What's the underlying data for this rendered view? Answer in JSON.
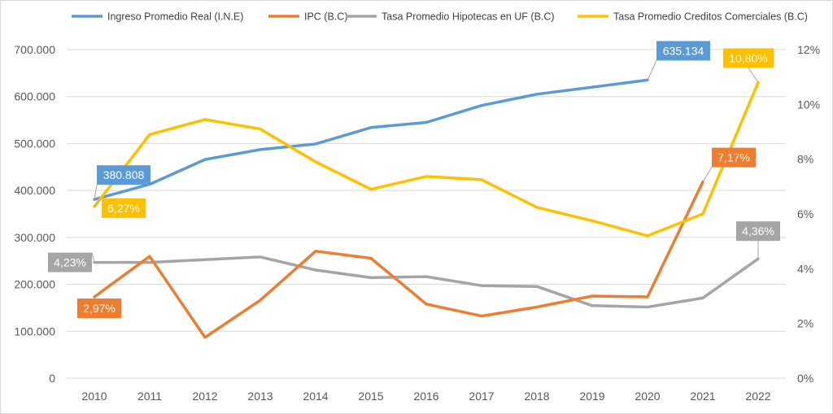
{
  "chart_data": {
    "type": "line",
    "categories": [
      "2010",
      "2011",
      "2012",
      "2013",
      "2014",
      "2015",
      "2016",
      "2017",
      "2018",
      "2019",
      "2020",
      "2021",
      "2022"
    ],
    "y_left": {
      "ticks": [
        "0",
        "100.000",
        "200.000",
        "300.000",
        "400.000",
        "500.000",
        "600.000",
        "700.000"
      ],
      "range": [
        0,
        700000
      ]
    },
    "y_right": {
      "ticks": [
        "0%",
        "2%",
        "4%",
        "6%",
        "8%",
        "10%",
        "12%"
      ],
      "range": [
        0,
        12
      ]
    },
    "grid": true,
    "legend_position": "top",
    "series": [
      {
        "name": "Ingreso Promedio Real (I.N.E)",
        "axis": "left",
        "color": "#5b9bd5",
        "values": [
          380808,
          413000,
          466000,
          487000,
          499000,
          534000,
          545000,
          581000,
          605000,
          620000,
          635134,
          null,
          null
        ]
      },
      {
        "name": "IPC (B.C)",
        "axis": "right",
        "color": "#ed7d31",
        "values": [
          2.97,
          4.45,
          1.49,
          2.85,
          4.64,
          4.38,
          2.71,
          2.27,
          2.6,
          3.0,
          2.97,
          7.17,
          null
        ]
      },
      {
        "name": "Tasa Promedio Hipotecas en UF (B.C)",
        "axis": "right",
        "color": "#a5a5a5",
        "values": [
          4.23,
          4.23,
          4.33,
          4.43,
          3.95,
          3.67,
          3.71,
          3.38,
          3.35,
          2.65,
          2.6,
          2.93,
          4.36
        ]
      },
      {
        "name": "Tasa Promedio Creditos Comerciales (B.C)",
        "axis": "right",
        "color": "#ffc000",
        "values": [
          6.27,
          8.9,
          9.45,
          9.1,
          7.9,
          6.9,
          7.37,
          7.25,
          6.24,
          5.75,
          5.2,
          6.0,
          10.8
        ]
      }
    ],
    "data_labels": [
      {
        "series": 0,
        "index": 0,
        "text": "380.808",
        "bg": "#5b9bd5"
      },
      {
        "series": 0,
        "index": 10,
        "text": "635.134",
        "bg": "#5b9bd5"
      },
      {
        "series": 1,
        "index": 0,
        "text": "2,97%",
        "bg": "#ed7d31"
      },
      {
        "series": 1,
        "index": 11,
        "text": "7,17%",
        "bg": "#ed7d31"
      },
      {
        "series": 2,
        "index": 0,
        "text": "4,23%",
        "bg": "#a5a5a5"
      },
      {
        "series": 2,
        "index": 12,
        "text": "4,36%",
        "bg": "#a5a5a5"
      },
      {
        "series": 3,
        "index": 0,
        "text": "6,27%",
        "bg": "#ffc000",
        "text_color": "#000000"
      },
      {
        "series": 3,
        "index": 12,
        "text": "10,80%",
        "bg": "#ffc000",
        "text_color": "#000000"
      }
    ]
  }
}
